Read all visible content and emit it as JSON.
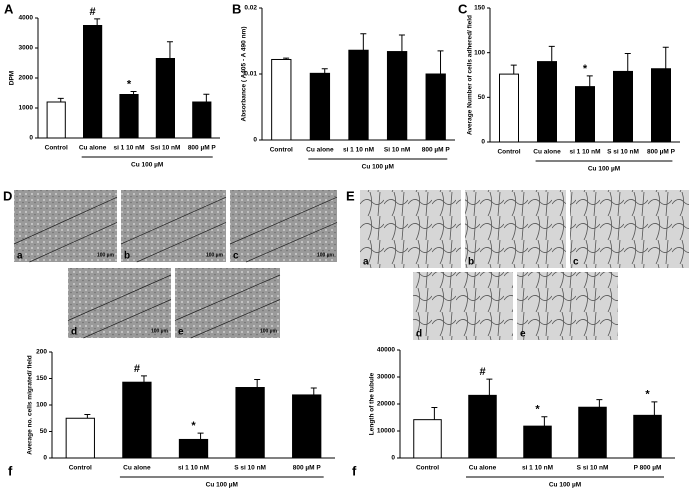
{
  "chart_data": [
    {
      "type": "bar",
      "panel": "A",
      "y_label": "DPM",
      "group_label": "Cu 100 µM",
      "categories": [
        "Control",
        "Cu alone",
        "si 1 10 nM",
        "Ssi 10 nM",
        "800 µM P"
      ],
      "values": [
        1200,
        3750,
        1450,
        2650,
        1200
      ],
      "errors": [
        120,
        220,
        100,
        560,
        260
      ],
      "markers": [
        null,
        "#",
        "*",
        null,
        null
      ],
      "bar_colors": [
        "#ffffff",
        "#000000",
        "#000000",
        "#000000",
        "#000000"
      ],
      "ylim": [
        0,
        4000
      ],
      "yticks": [
        0,
        1000,
        2000,
        3000,
        4000
      ]
    },
    {
      "type": "bar",
      "panel": "B",
      "y_label": "Absorbance ( A405 - A 490 nm)",
      "group_label": "Cu 100 µM",
      "categories": [
        "Control",
        "Cu alone",
        "si 1 10 nM",
        "Si 10 nM",
        "800 µM P"
      ],
      "values": [
        0.0122,
        0.0101,
        0.0136,
        0.0134,
        0.01
      ],
      "errors": [
        0.0002,
        0.0007,
        0.0025,
        0.0025,
        0.0035
      ],
      "markers": [
        null,
        null,
        null,
        null,
        null
      ],
      "bar_colors": [
        "#ffffff",
        "#000000",
        "#000000",
        "#000000",
        "#000000"
      ],
      "ylim": [
        0,
        0.02
      ],
      "yticks": [
        0,
        0.01,
        0.02
      ]
    },
    {
      "type": "bar",
      "panel": "C",
      "y_label": "Average Number of cells adhered/ field",
      "group_label": "Cu 100 µM",
      "categories": [
        "Control",
        "Cu alone",
        "si 1 10 nM",
        "S si 10 nM",
        "800 µM P"
      ],
      "values": [
        76,
        90,
        62,
        79,
        82
      ],
      "errors": [
        10,
        17,
        12,
        20,
        24
      ],
      "markers": [
        null,
        null,
        "*",
        null,
        null
      ],
      "bar_colors": [
        "#ffffff",
        "#000000",
        "#000000",
        "#000000",
        "#000000"
      ],
      "ylim": [
        0,
        150
      ],
      "yticks": [
        0,
        50,
        100,
        150
      ]
    },
    {
      "type": "bar",
      "panel": "f",
      "y_label": "Average no. cells migrated/ field",
      "group_label": "Cu 100 µM",
      "categories": [
        "Control",
        "Cu alone",
        "si 1 10 nM",
        "S si 10 nM",
        "800 µM P"
      ],
      "values": [
        75,
        143,
        35,
        133,
        119
      ],
      "errors": [
        7,
        12,
        12,
        15,
        13
      ],
      "markers": [
        null,
        "#",
        "*",
        null,
        null
      ],
      "bar_colors": [
        "#ffffff",
        "#000000",
        "#000000",
        "#000000",
        "#000000"
      ],
      "ylim": [
        0,
        200
      ],
      "yticks": [
        0,
        50,
        100,
        150,
        200
      ]
    },
    {
      "type": "bar",
      "panel": "f",
      "y_label": "Length of the tubule",
      "group_label": "Cu 100 µM",
      "categories": [
        "Control",
        "Cu alone",
        "si 1 10 nM",
        "S si 10 nM",
        "P 800 µM"
      ],
      "values": [
        14200,
        23200,
        11800,
        18800,
        15800
      ],
      "errors": [
        4500,
        6000,
        3500,
        2800,
        5000
      ],
      "markers": [
        null,
        "#",
        "*",
        null,
        "*"
      ],
      "bar_colors": [
        "#ffffff",
        "#000000",
        "#000000",
        "#000000",
        "#000000"
      ],
      "ylim": [
        0,
        40000
      ],
      "yticks": [
        0,
        10000,
        20000,
        30000,
        40000
      ]
    }
  ],
  "figure": {
    "D": {
      "label": "D",
      "images": [
        {
          "label": "a",
          "scale": "100 µm"
        },
        {
          "label": "b",
          "scale": "100 µm"
        },
        {
          "label": "c",
          "scale": "100 µm"
        },
        {
          "label": "d",
          "scale": "100 µm"
        },
        {
          "label": "e",
          "scale": "100 µm"
        }
      ]
    },
    "E": {
      "label": "E",
      "images": [
        {
          "label": "a"
        },
        {
          "label": "b"
        },
        {
          "label": "c"
        },
        {
          "label": "d"
        },
        {
          "label": "e"
        }
      ]
    }
  }
}
